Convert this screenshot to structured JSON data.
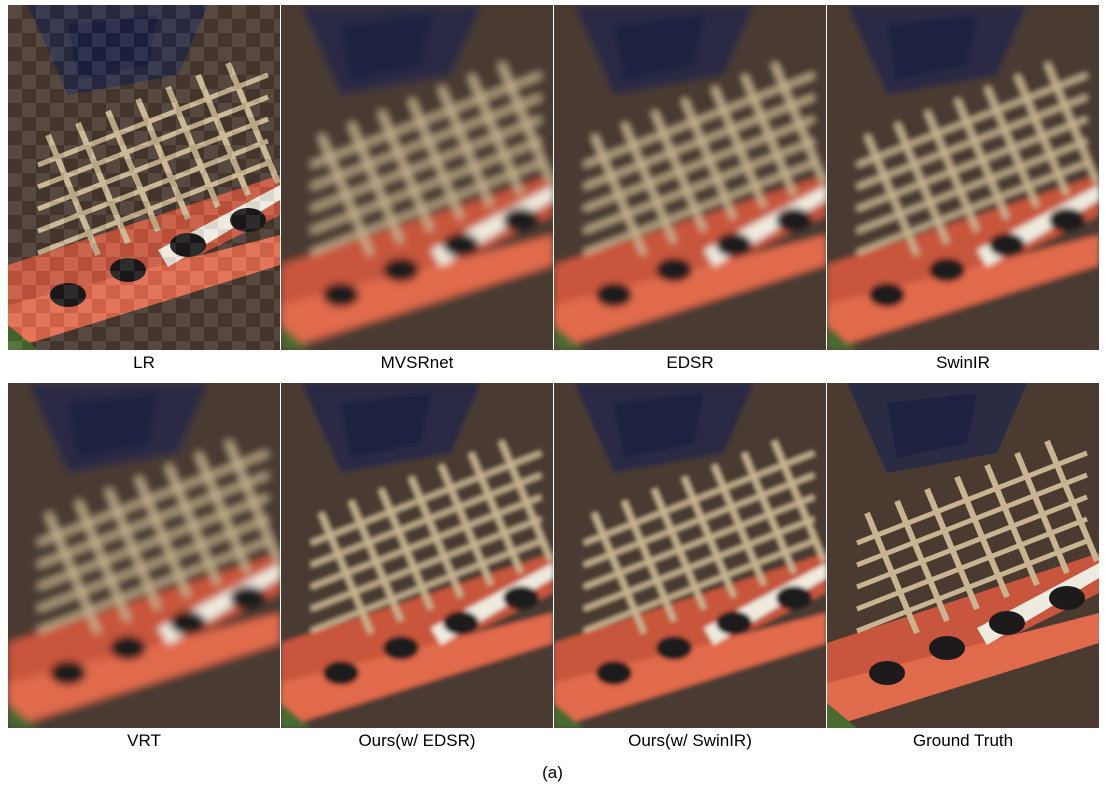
{
  "panels": [
    {
      "label": "LR"
    },
    {
      "label": "MVSRnet"
    },
    {
      "label": "EDSR"
    },
    {
      "label": "SwinIR"
    },
    {
      "label": "VRT"
    },
    {
      "label": "Ours(w/ EDSR)"
    },
    {
      "label": "Ours(w/ SwinIR)"
    },
    {
      "label": "Ground Truth"
    }
  ],
  "caption": "(a)"
}
